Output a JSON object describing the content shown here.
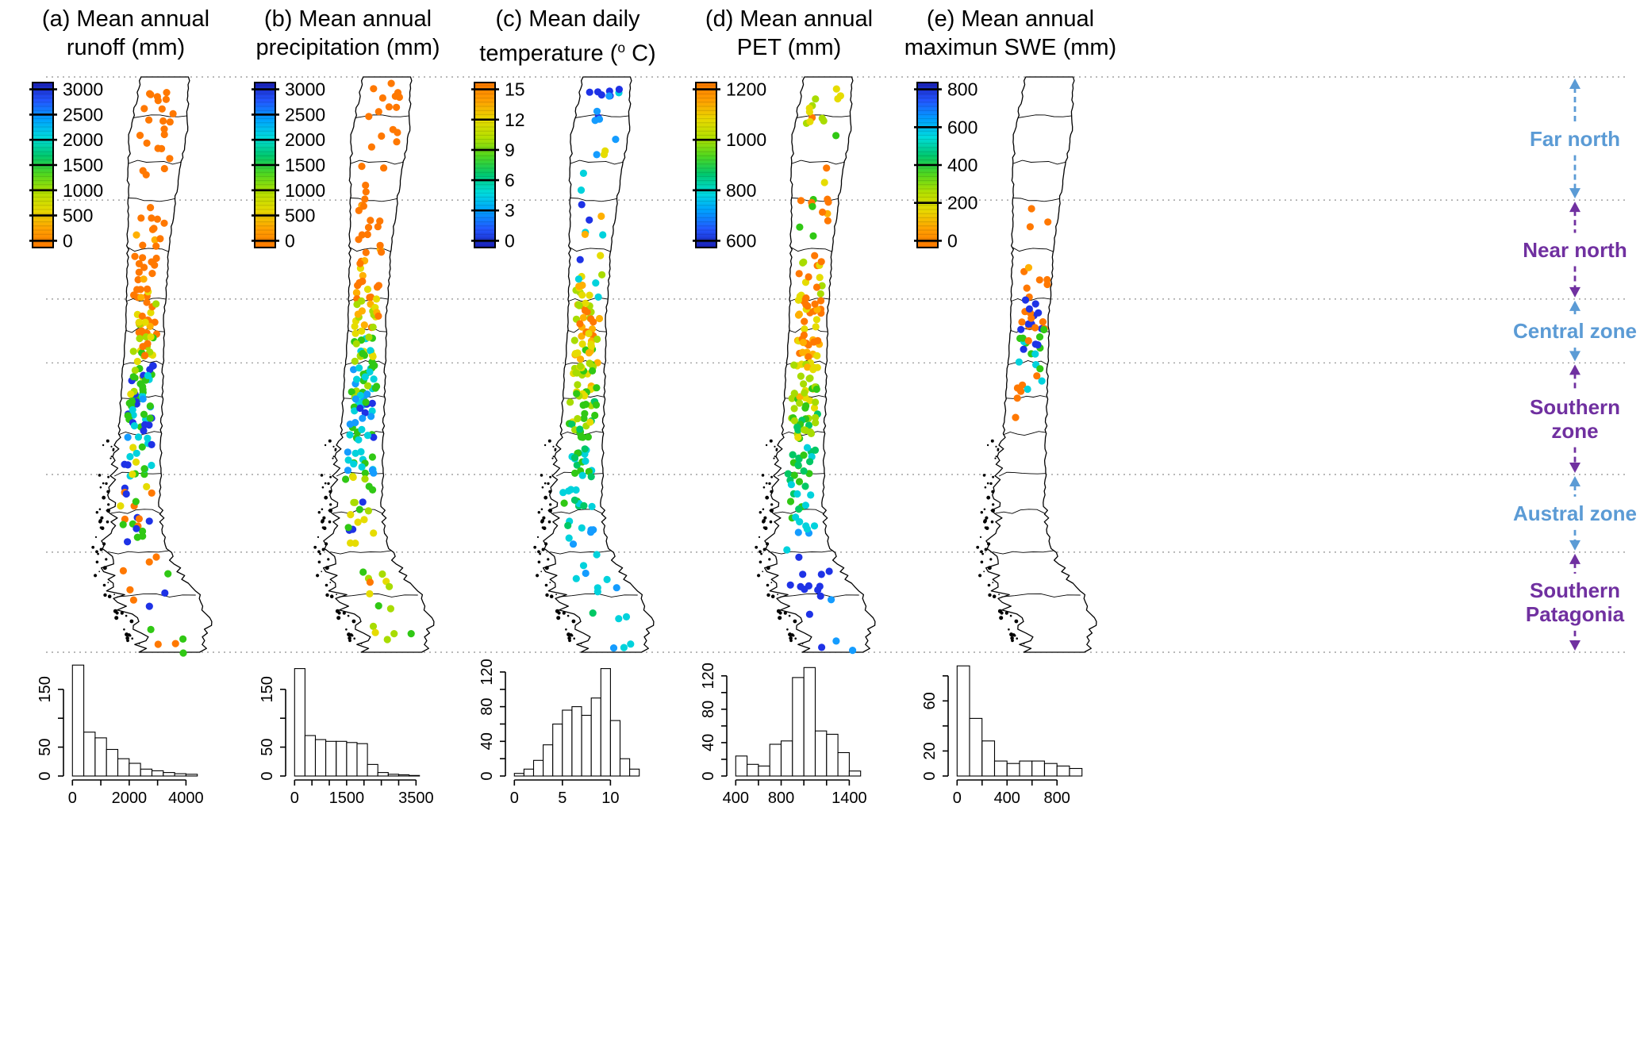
{
  "figure": {
    "background": "#ffffff"
  },
  "colormap_low_to_high": [
    "#FF7800",
    "#FFA000",
    "#E8D800",
    "#B4E000",
    "#50D71E",
    "#00C86E",
    "#00DCDC",
    "#00A0FF",
    "#2356FF",
    "#191EB4"
  ],
  "dot_colors": [
    "#FF7800",
    "#FFB000",
    "#E6DC00",
    "#A8DC00",
    "#30C814",
    "#00C864",
    "#00D2DC",
    "#149CFF",
    "#1E32E6"
  ],
  "zones": [
    {
      "lines": [
        "Far north"
      ],
      "color": "#5B9BD5"
    },
    {
      "lines": [
        "Near north"
      ],
      "color": "#7030A0"
    },
    {
      "lines": [
        "Central zone"
      ],
      "color": "#5B9BD5"
    },
    {
      "lines": [
        "Southern",
        "zone"
      ],
      "color": "#7030A0"
    },
    {
      "lines": [
        "Austral zone"
      ],
      "color": "#5B9BD5"
    },
    {
      "lines": [
        "Southern",
        "Patagonia"
      ],
      "color": "#7030A0"
    }
  ],
  "chart_data": [
    {
      "id": "a",
      "type": "map-points+bar-histogram",
      "title_line1": "(a) Mean annual",
      "title_line2": "runoff (mm)",
      "colorbar": {
        "ticks": [
          0,
          500,
          1000,
          1500,
          2000,
          2500,
          3000
        ],
        "tick_labels": [
          "0",
          "500",
          "1000",
          "1500",
          "2000",
          "2500",
          "3000"
        ],
        "reversed": false
      },
      "histogram": {
        "type": "bar",
        "x0": 0,
        "bw": 400,
        "ymax": 195,
        "values": [
          192,
          76,
          66,
          46,
          30,
          22,
          12,
          9,
          6,
          4,
          3
        ],
        "xticks": [
          {
            "v": 0,
            "l": "0"
          },
          {
            "v": 1000,
            "l": ""
          },
          {
            "v": 2000,
            "l": "2000"
          },
          {
            "v": 3000,
            "l": ""
          },
          {
            "v": 4000,
            "l": "4000"
          }
        ],
        "yticks": [
          {
            "v": 0,
            "l": "0"
          },
          {
            "v": 50,
            "l": "50"
          },
          {
            "v": 100,
            "l": ""
          },
          {
            "v": 150,
            "l": "150"
          }
        ]
      },
      "east_bias": 0,
      "dot_bands": [
        {
          "t0": 0.01,
          "t1": 0.1,
          "n": 14,
          "mix": {
            "0": 1
          }
        },
        {
          "t0": 0.1,
          "t1": 0.215,
          "n": 8,
          "mix": {
            "0": 1
          }
        },
        {
          "t0": 0.215,
          "t1": 0.32,
          "n": 16,
          "mix": {
            "0": 0.9,
            "1": 0.1
          }
        },
        {
          "t0": 0.32,
          "t1": 0.385,
          "n": 14,
          "mix": {
            "0": 0.7,
            "1": 0.2,
            "2": 0.1
          }
        },
        {
          "t0": 0.385,
          "t1": 0.45,
          "n": 22,
          "mix": {
            "0": 0.45,
            "1": 0.2,
            "2": 0.25,
            "3": 0.1
          }
        },
        {
          "t0": 0.45,
          "t1": 0.497,
          "n": 18,
          "mix": {
            "2": 0.3,
            "3": 0.3,
            "4": 0.2,
            "0": 0.2
          }
        },
        {
          "t0": 0.497,
          "t1": 0.56,
          "n": 26,
          "mix": {
            "4": 0.35,
            "3": 0.2,
            "6": 0.2,
            "2": 0.15,
            "8": 0.1
          }
        },
        {
          "t0": 0.56,
          "t1": 0.63,
          "n": 26,
          "mix": {
            "6": 0.3,
            "4": 0.25,
            "8": 0.25,
            "7": 0.2
          }
        },
        {
          "t0": 0.63,
          "t1": 0.692,
          "n": 16,
          "mix": {
            "8": 0.4,
            "6": 0.3,
            "4": 0.2,
            "2": 0.1
          }
        },
        {
          "t0": 0.692,
          "t1": 0.78,
          "n": 14,
          "mix": {
            "4": 0.3,
            "8": 0.25,
            "0": 0.2,
            "6": 0.15,
            "2": 0.1
          }
        },
        {
          "t0": 0.78,
          "t1": 0.828,
          "n": 6,
          "mix": {
            "4": 0.4,
            "0": 0.3,
            "8": 0.3
          }
        },
        {
          "t0": 0.828,
          "t1": 0.93,
          "n": 8,
          "mix": {
            "0": 0.4,
            "4": 0.3,
            "8": 0.2,
            "2": 0.1
          }
        },
        {
          "t0": 0.93,
          "t1": 1.0,
          "n": 5,
          "mix": {
            "4": 0.5,
            "2": 0.3,
            "0": 0.2
          }
        }
      ]
    },
    {
      "id": "b",
      "type": "map-points+bar-histogram",
      "title_line1": "(b) Mean annual",
      "title_line2": "precipitation (mm)",
      "colorbar": {
        "ticks": [
          0,
          500,
          1000,
          1500,
          2000,
          2500,
          3000
        ],
        "tick_labels": [
          "0",
          "500",
          "1000",
          "1500",
          "2000",
          "2500",
          "3000"
        ],
        "reversed": false
      },
      "histogram": {
        "type": "bar",
        "x0": 0,
        "bw": 300,
        "ymax": 195,
        "values": [
          186,
          70,
          63,
          60,
          60,
          58,
          56,
          20,
          6,
          3,
          2,
          1
        ],
        "xticks": [
          {
            "v": 0,
            "l": "0"
          },
          {
            "v": 500,
            "l": ""
          },
          {
            "v": 1000,
            "l": ""
          },
          {
            "v": 1500,
            "l": "1500"
          },
          {
            "v": 2000,
            "l": ""
          },
          {
            "v": 2500,
            "l": ""
          },
          {
            "v": 3000,
            "l": ""
          },
          {
            "v": 3500,
            "l": "3500"
          }
        ],
        "yticks": [
          {
            "v": 0,
            "l": "0"
          },
          {
            "v": 50,
            "l": "50"
          },
          {
            "v": 100,
            "l": ""
          },
          {
            "v": 150,
            "l": "150"
          }
        ]
      },
      "east_bias": 0,
      "dot_bands": [
        {
          "t0": 0.01,
          "t1": 0.1,
          "n": 12,
          "mix": {
            "0": 1
          }
        },
        {
          "t0": 0.1,
          "t1": 0.215,
          "n": 8,
          "mix": {
            "0": 1
          }
        },
        {
          "t0": 0.215,
          "t1": 0.32,
          "n": 16,
          "mix": {
            "0": 0.9,
            "1": 0.1
          }
        },
        {
          "t0": 0.32,
          "t1": 0.385,
          "n": 14,
          "mix": {
            "0": 0.6,
            "1": 0.3,
            "2": 0.1
          }
        },
        {
          "t0": 0.385,
          "t1": 0.45,
          "n": 22,
          "mix": {
            "1": 0.3,
            "2": 0.3,
            "0": 0.2,
            "3": 0.2
          }
        },
        {
          "t0": 0.45,
          "t1": 0.497,
          "n": 18,
          "mix": {
            "3": 0.35,
            "4": 0.3,
            "2": 0.2,
            "6": 0.15
          }
        },
        {
          "t0": 0.497,
          "t1": 0.56,
          "n": 26,
          "mix": {
            "4": 0.3,
            "6": 0.3,
            "3": 0.2,
            "7": 0.2
          }
        },
        {
          "t0": 0.56,
          "t1": 0.63,
          "n": 26,
          "mix": {
            "6": 0.35,
            "7": 0.25,
            "8": 0.2,
            "4": 0.2
          }
        },
        {
          "t0": 0.63,
          "t1": 0.692,
          "n": 16,
          "mix": {
            "6": 0.3,
            "8": 0.3,
            "4": 0.2,
            "7": 0.2
          }
        },
        {
          "t0": 0.692,
          "t1": 0.78,
          "n": 14,
          "mix": {
            "4": 0.3,
            "3": 0.2,
            "8": 0.2,
            "6": 0.15,
            "2": 0.15
          }
        },
        {
          "t0": 0.78,
          "t1": 0.828,
          "n": 6,
          "mix": {
            "4": 0.4,
            "2": 0.3,
            "8": 0.3
          }
        },
        {
          "t0": 0.828,
          "t1": 0.93,
          "n": 9,
          "mix": {
            "2": 0.4,
            "3": 0.3,
            "0": 0.2,
            "4": 0.1
          }
        },
        {
          "t0": 0.93,
          "t1": 1.0,
          "n": 5,
          "mix": {
            "3": 0.4,
            "2": 0.3,
            "4": 0.3
          }
        }
      ]
    },
    {
      "id": "c",
      "type": "map-points+bar-histogram",
      "title_line1": "(c) Mean daily",
      "title2_pre": "temperature (",
      "title2_sup": "o",
      "title2_post": " C)",
      "colorbar": {
        "ticks": [
          0,
          3,
          6,
          9,
          12,
          15
        ],
        "tick_labels": [
          "0",
          "3",
          "6",
          "9",
          "12",
          "15"
        ],
        "reversed": true
      },
      "histogram": {
        "type": "bar",
        "x0": 0,
        "bw": 1,
        "ymax": 130,
        "values": [
          3,
          8,
          18,
          36,
          60,
          76,
          80,
          70,
          90,
          124,
          64,
          20,
          8
        ],
        "xticks": [
          {
            "v": 0,
            "l": "0"
          },
          {
            "v": 5,
            "l": "5"
          },
          {
            "v": 10,
            "l": "10"
          }
        ],
        "yticks": [
          {
            "v": 0,
            "l": "0"
          },
          {
            "v": 20,
            "l": ""
          },
          {
            "v": 40,
            "l": "40"
          },
          {
            "v": 60,
            "l": ""
          },
          {
            "v": 80,
            "l": "80"
          },
          {
            "v": 100,
            "l": ""
          },
          {
            "v": 120,
            "l": "120"
          }
        ]
      },
      "east_bias": 0,
      "dot_bands": [
        {
          "t0": 0.01,
          "t1": 0.08,
          "n": 12,
          "mix": {
            "8": 0.5,
            "7": 0.3,
            "6": 0.2
          }
        },
        {
          "t0": 0.08,
          "t1": 0.215,
          "n": 6,
          "mix": {
            "6": 0.4,
            "7": 0.3,
            "2": 0.3
          }
        },
        {
          "t0": 0.215,
          "t1": 0.32,
          "n": 8,
          "mix": {
            "8": 0.3,
            "6": 0.3,
            "2": 0.2,
            "1": 0.2
          }
        },
        {
          "t0": 0.32,
          "t1": 0.385,
          "n": 12,
          "mix": {
            "1": 0.3,
            "2": 0.3,
            "3": 0.2,
            "6": 0.2
          }
        },
        {
          "t0": 0.385,
          "t1": 0.45,
          "n": 22,
          "mix": {
            "0": 0.3,
            "1": 0.3,
            "2": 0.2,
            "3": 0.2
          }
        },
        {
          "t0": 0.45,
          "t1": 0.497,
          "n": 18,
          "mix": {
            "1": 0.3,
            "2": 0.3,
            "3": 0.25,
            "4": 0.15
          }
        },
        {
          "t0": 0.497,
          "t1": 0.56,
          "n": 26,
          "mix": {
            "3": 0.35,
            "4": 0.3,
            "2": 0.2,
            "1": 0.15
          }
        },
        {
          "t0": 0.56,
          "t1": 0.63,
          "n": 26,
          "mix": {
            "4": 0.4,
            "3": 0.3,
            "5": 0.2,
            "2": 0.1
          }
        },
        {
          "t0": 0.63,
          "t1": 0.692,
          "n": 16,
          "mix": {
            "4": 0.4,
            "5": 0.3,
            "6": 0.3
          }
        },
        {
          "t0": 0.692,
          "t1": 0.78,
          "n": 14,
          "mix": {
            "6": 0.5,
            "5": 0.3,
            "4": 0.2
          }
        },
        {
          "t0": 0.78,
          "t1": 0.828,
          "n": 6,
          "mix": {
            "6": 0.6,
            "7": 0.4
          }
        },
        {
          "t0": 0.828,
          "t1": 0.93,
          "n": 9,
          "mix": {
            "6": 0.6,
            "5": 0.2,
            "7": 0.2
          }
        },
        {
          "t0": 0.93,
          "t1": 1.0,
          "n": 5,
          "mix": {
            "6": 0.7,
            "7": 0.3
          }
        }
      ]
    },
    {
      "id": "d",
      "type": "map-points+bar-histogram",
      "title_line1": "(d) Mean annual",
      "title_line2": "PET (mm)",
      "colorbar": {
        "ticks": [
          600,
          800,
          1000,
          1200
        ],
        "tick_labels": [
          "600",
          "800",
          "1000",
          "1200"
        ],
        "reversed": true
      },
      "histogram": {
        "type": "bar",
        "x0": 400,
        "bw": 100,
        "ymax": 135,
        "values": [
          24,
          14,
          12,
          38,
          42,
          118,
          130,
          54,
          50,
          28,
          6
        ],
        "xticks": [
          {
            "v": 400,
            "l": "400"
          },
          {
            "v": 600,
            "l": ""
          },
          {
            "v": 800,
            "l": "800"
          },
          {
            "v": 1000,
            "l": ""
          },
          {
            "v": 1200,
            "l": ""
          },
          {
            "v": 1400,
            "l": "1400"
          }
        ],
        "yticks": [
          {
            "v": 0,
            "l": "0"
          },
          {
            "v": 20,
            "l": ""
          },
          {
            "v": 40,
            "l": "40"
          },
          {
            "v": 60,
            "l": ""
          },
          {
            "v": 80,
            "l": "80"
          },
          {
            "v": 100,
            "l": ""
          },
          {
            "v": 120,
            "l": "120"
          }
        ]
      },
      "east_bias": 0,
      "dot_bands": [
        {
          "t0": 0.01,
          "t1": 0.08,
          "n": 12,
          "mix": {
            "3": 0.3,
            "2": 0.3,
            "4": 0.2,
            "0": 0.2
          }
        },
        {
          "t0": 0.08,
          "t1": 0.215,
          "n": 6,
          "mix": {
            "0": 0.4,
            "4": 0.3,
            "2": 0.3
          }
        },
        {
          "t0": 0.215,
          "t1": 0.32,
          "n": 10,
          "mix": {
            "0": 0.6,
            "1": 0.2,
            "4": 0.2
          }
        },
        {
          "t0": 0.32,
          "t1": 0.385,
          "n": 14,
          "mix": {
            "0": 0.5,
            "2": 0.2,
            "3": 0.2,
            "4": 0.1
          }
        },
        {
          "t0": 0.385,
          "t1": 0.45,
          "n": 22,
          "mix": {
            "0": 0.6,
            "1": 0.2,
            "2": 0.2
          }
        },
        {
          "t0": 0.45,
          "t1": 0.497,
          "n": 18,
          "mix": {
            "0": 0.5,
            "1": 0.25,
            "2": 0.25
          }
        },
        {
          "t0": 0.497,
          "t1": 0.56,
          "n": 26,
          "mix": {
            "2": 0.3,
            "3": 0.3,
            "4": 0.25,
            "1": 0.15
          }
        },
        {
          "t0": 0.56,
          "t1": 0.63,
          "n": 26,
          "mix": {
            "4": 0.4,
            "3": 0.3,
            "5": 0.2,
            "2": 0.1
          }
        },
        {
          "t0": 0.63,
          "t1": 0.692,
          "n": 16,
          "mix": {
            "4": 0.4,
            "5": 0.3,
            "6": 0.3
          }
        },
        {
          "t0": 0.692,
          "t1": 0.78,
          "n": 14,
          "mix": {
            "6": 0.5,
            "5": 0.3,
            "4": 0.2
          }
        },
        {
          "t0": 0.78,
          "t1": 0.828,
          "n": 6,
          "mix": {
            "6": 0.5,
            "7": 0.5
          }
        },
        {
          "t0": 0.828,
          "t1": 0.9,
          "n": 10,
          "mix": {
            "8": 0.8,
            "7": 0.2
          }
        },
        {
          "t0": 0.9,
          "t1": 1.0,
          "n": 6,
          "mix": {
            "8": 0.7,
            "7": 0.3
          }
        }
      ]
    },
    {
      "id": "e",
      "type": "map-points+bar-histogram",
      "title_line1": "(e) Mean annual",
      "title_line2": "maximun SWE (mm)",
      "colorbar": {
        "ticks": [
          0,
          200,
          400,
          600,
          800
        ],
        "tick_labels": [
          "0",
          "200",
          "400",
          "600",
          "800"
        ],
        "reversed": false
      },
      "histogram": {
        "type": "bar",
        "x0": 0,
        "bw": 100,
        "ymax": 90,
        "values": [
          88,
          46,
          28,
          12,
          10,
          12,
          12,
          10,
          8,
          6
        ],
        "xticks": [
          {
            "v": 0,
            "l": "0"
          },
          {
            "v": 200,
            "l": ""
          },
          {
            "v": 400,
            "l": "400"
          },
          {
            "v": 600,
            "l": ""
          },
          {
            "v": 800,
            "l": "800"
          }
        ],
        "yticks": [
          {
            "v": 0,
            "l": "0"
          },
          {
            "v": 20,
            "l": "20"
          },
          {
            "v": 40,
            "l": ""
          },
          {
            "v": 60,
            "l": "60"
          },
          {
            "v": 80,
            "l": ""
          }
        ]
      },
      "east_bias": 0.18,
      "dot_bands": [
        {
          "t0": 0.215,
          "t1": 0.32,
          "n": 3,
          "mix": {
            "0": 1
          }
        },
        {
          "t0": 0.32,
          "t1": 0.385,
          "n": 6,
          "mix": {
            "0": 0.8,
            "1": 0.2
          }
        },
        {
          "t0": 0.385,
          "t1": 0.45,
          "n": 20,
          "mix": {
            "0": 0.4,
            "4": 0.2,
            "8": 0.25,
            "3": 0.15
          }
        },
        {
          "t0": 0.45,
          "t1": 0.497,
          "n": 12,
          "mix": {
            "4": 0.3,
            "0": 0.3,
            "6": 0.2,
            "8": 0.2
          }
        },
        {
          "t0": 0.497,
          "t1": 0.545,
          "n": 8,
          "mix": {
            "6": 0.4,
            "4": 0.3,
            "0": 0.3
          }
        },
        {
          "t0": 0.545,
          "t1": 0.6,
          "n": 3,
          "mix": {
            "0": 0.6,
            "6": 0.4
          }
        }
      ]
    }
  ]
}
